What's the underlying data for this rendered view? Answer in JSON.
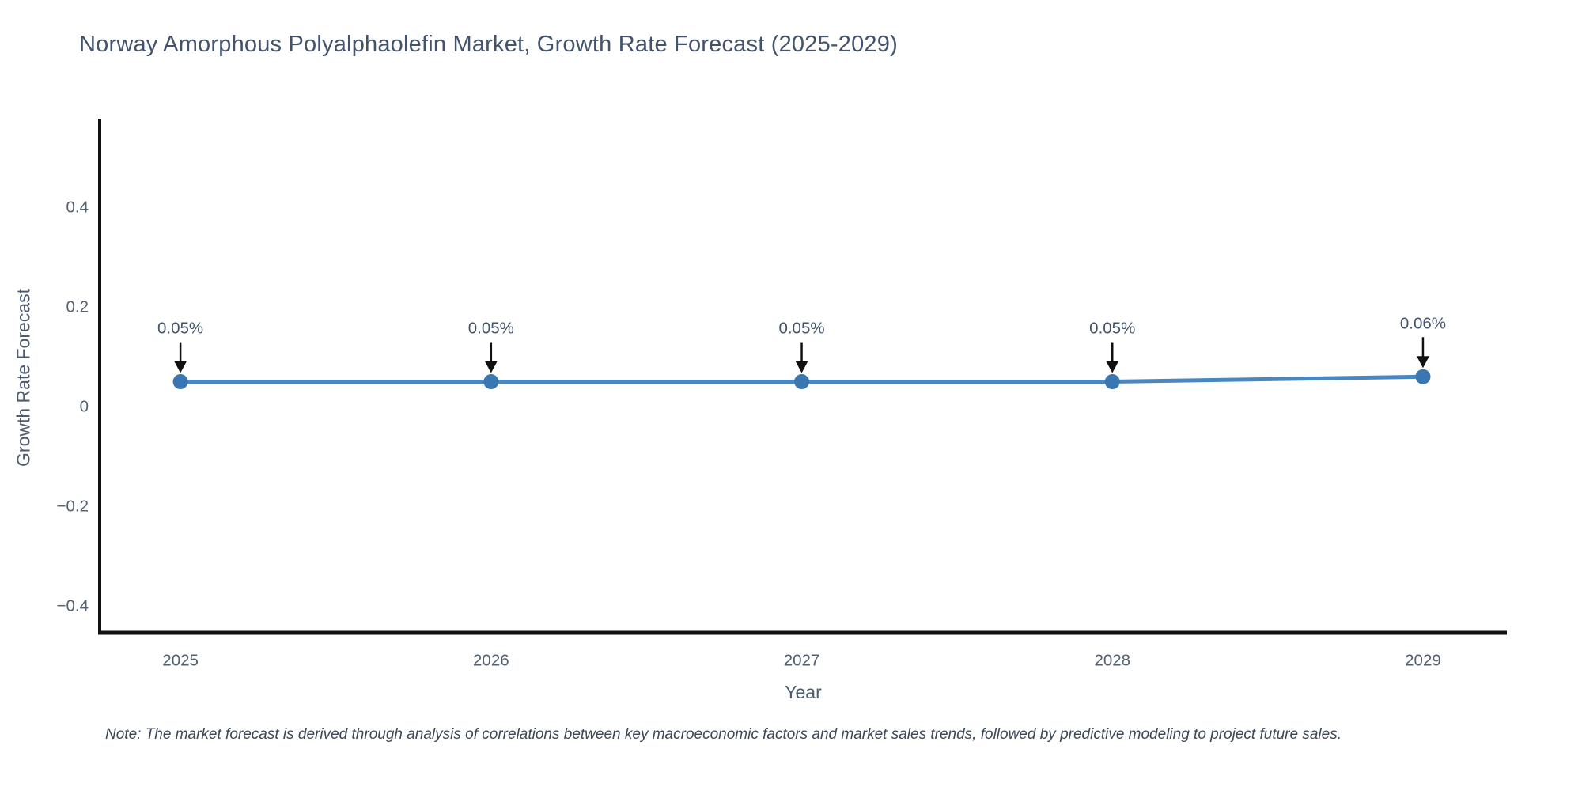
{
  "note": "Note: The market forecast is derived through analysis of correlations between key macroeconomic factors and market sales trends, followed by predictive modeling to project future sales.",
  "colors": {
    "background": "#ffffff",
    "line": "#4a86c0",
    "marker": "#3a77b0",
    "axis": "#111111",
    "arrow": "#111111",
    "title_text": "#42536b",
    "tick_text": "#53606e",
    "annotation_text": "#44546a",
    "note_text": "#3c4856"
  },
  "chart_data": {
    "type": "line",
    "title": "Norway Amorphous Polyalphaolefin Market, Growth Rate Forecast (2025-2029)",
    "xlabel": "Year",
    "ylabel": "Growth Rate Forecast",
    "x": [
      2025,
      2026,
      2027,
      2028,
      2029
    ],
    "series": [
      {
        "name": "Growth Rate Forecast",
        "values": [
          0.05,
          0.05,
          0.05,
          0.05,
          0.06
        ]
      }
    ],
    "point_labels": [
      "0.05%",
      "0.05%",
      "0.05%",
      "0.05%",
      "0.06%"
    ],
    "annotations_have_arrows": true,
    "xlim": [
      2024.74,
      2029.27
    ],
    "ylim": [
      -0.454,
      0.578
    ],
    "xticks": [
      {
        "value": 2025,
        "label": "2025"
      },
      {
        "value": 2026,
        "label": "2026"
      },
      {
        "value": 2027,
        "label": "2027"
      },
      {
        "value": 2028,
        "label": "2028"
      },
      {
        "value": 2029,
        "label": "2029"
      }
    ],
    "yticks": [
      {
        "value": 0.4,
        "label": "0.4"
      },
      {
        "value": 0.2,
        "label": "0.2"
      },
      {
        "value": 0,
        "label": "0"
      },
      {
        "value": -0.2,
        "label": "−0.2"
      },
      {
        "value": -0.4,
        "label": "−0.4"
      }
    ],
    "grid": false,
    "legend": "none",
    "marker_shape": "circle"
  }
}
